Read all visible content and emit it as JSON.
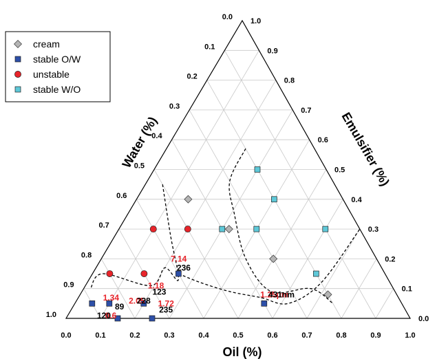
{
  "chart_data": {
    "type": "ternary-scatter",
    "axes": {
      "oil": {
        "title": "Oil (%)",
        "ticks": [
          "0.0",
          "0.1",
          "0.2",
          "0.3",
          "0.4",
          "0.5",
          "0.6",
          "0.7",
          "0.8",
          "0.9",
          "1.0"
        ]
      },
      "water": {
        "title": "Water (%)",
        "ticks": [
          "0.0",
          "0.1",
          "0.2",
          "0.3",
          "0.4",
          "0.5",
          "0.6",
          "0.7",
          "0.8",
          "0.9",
          "1.0"
        ]
      },
      "emulsifier": {
        "title": "Emulsifier (%)",
        "ticks": [
          "0.0",
          "0.1",
          "0.2",
          "0.3",
          "0.4",
          "0.5",
          "0.6",
          "0.7",
          "0.8",
          "0.9",
          "1.0"
        ]
      }
    },
    "grid": true,
    "legend_position": "top-left",
    "legend": [
      {
        "key": "cream",
        "label": "cream",
        "marker": "diamond",
        "color": "#b4b4b4"
      },
      {
        "key": "stable_ow",
        "label": "stable O/W",
        "marker": "square",
        "color": "#2d4fa8"
      },
      {
        "key": "unstable",
        "label": "unstable",
        "marker": "circle",
        "color": "#e8242a"
      },
      {
        "key": "stable_wo",
        "label": "stable W/O",
        "marker": "square",
        "color": "#5ec8d8"
      }
    ],
    "series": [
      {
        "key": "cream",
        "points": [
          {
            "oil": 0.15,
            "water": 0.45,
            "emulsifier": 0.4
          },
          {
            "oil": 0.32,
            "water": 0.38,
            "emulsifier": 0.3
          },
          {
            "oil": 0.5,
            "water": 0.3,
            "emulsifier": 0.2
          },
          {
            "oil": 0.72,
            "water": 0.2,
            "emulsifier": 0.08
          }
        ]
      },
      {
        "key": "stable_ow",
        "points": [
          {
            "oil": 0.05,
            "water": 0.9,
            "emulsifier": 0.05
          },
          {
            "oil": 0.1,
            "water": 0.85,
            "emulsifier": 0.05
          },
          {
            "oil": 0.15,
            "water": 0.85,
            "emulsifier": 0.0
          },
          {
            "oil": 0.2,
            "water": 0.75,
            "emulsifier": 0.05
          },
          {
            "oil": 0.25,
            "water": 0.75,
            "emulsifier": 0.0
          },
          {
            "oil": 0.25,
            "water": 0.6,
            "emulsifier": 0.15
          },
          {
            "oil": 0.55,
            "water": 0.4,
            "emulsifier": 0.05
          }
        ]
      },
      {
        "key": "unstable",
        "points": [
          {
            "oil": 0.05,
            "water": 0.8,
            "emulsifier": 0.15
          },
          {
            "oil": 0.15,
            "water": 0.7,
            "emulsifier": 0.15
          },
          {
            "oil": 0.1,
            "water": 0.6,
            "emulsifier": 0.3
          },
          {
            "oil": 0.2,
            "water": 0.5,
            "emulsifier": 0.3
          }
        ]
      },
      {
        "key": "stable_wo",
        "points": [
          {
            "oil": 0.3,
            "water": 0.4,
            "emulsifier": 0.3
          },
          {
            "oil": 0.3,
            "water": 0.2,
            "emulsifier": 0.5
          },
          {
            "oil": 0.4,
            "water": 0.2,
            "emulsifier": 0.4
          },
          {
            "oil": 0.6,
            "water": 0.1,
            "emulsifier": 0.3
          },
          {
            "oil": 0.4,
            "water": 0.3,
            "emulsifier": 0.3
          },
          {
            "oil": 0.65,
            "water": 0.2,
            "emulsifier": 0.15
          }
        ]
      }
    ],
    "annotations": [
      {
        "text": "0.6",
        "color": "#e8242a",
        "oil": 0.13,
        "water": 0.87
      },
      {
        "text": "89",
        "color": "#000000",
        "oil": 0.14,
        "water": 0.83
      },
      {
        "text": "1.34",
        "color": "#e8242a",
        "oil": 0.1,
        "water": 0.84
      },
      {
        "text": "120",
        "color": "#000000",
        "oil": 0.11,
        "water": 0.89
      },
      {
        "text": "2.05",
        "color": "#e8242a",
        "oil": 0.18,
        "water": 0.77
      },
      {
        "text": "228",
        "color": "#000000",
        "oil": 0.2,
        "water": 0.75
      },
      {
        "text": "1.72",
        "color": "#e8242a",
        "oil": 0.27,
        "water": 0.69
      },
      {
        "text": "235",
        "color": "#000000",
        "oil": 0.28,
        "water": 0.7
      },
      {
        "text": "1.18",
        "color": "#e8242a",
        "oil": 0.21,
        "water": 0.69
      },
      {
        "text": "123",
        "color": "#000000",
        "oil": 0.23,
        "water": 0.69
      },
      {
        "text": "7.14",
        "color": "#e8242a",
        "oil": 0.23,
        "water": 0.58
      },
      {
        "text": "236",
        "color": "#000000",
        "oil": 0.26,
        "water": 0.58
      },
      {
        "text": "1.25μm",
        "color": "#e8242a",
        "oil": 0.57,
        "water": 0.36
      },
      {
        "text": "431nm",
        "color": "#000000",
        "oil": 0.59,
        "water": 0.34
      }
    ],
    "boundaries": [
      {
        "name": "W/O boundary",
        "points": [
          {
            "oil": 0.23,
            "water": 0.2
          },
          {
            "oil": 0.24,
            "water": 0.3
          },
          {
            "oil": 0.31,
            "water": 0.34
          },
          {
            "oil": 0.42,
            "water": 0.38
          },
          {
            "oil": 0.55,
            "water": 0.36
          },
          {
            "oil": 0.66,
            "water": 0.24
          },
          {
            "oil": 0.75,
            "water": 0.2
          }
        ]
      },
      {
        "name": "O/W boundary",
        "points": [
          {
            "oil": 0.05,
            "water": 0.5
          },
          {
            "oil": 0.16,
            "water": 0.56
          },
          {
            "oil": 0.26,
            "water": 0.61
          },
          {
            "oil": 0.2,
            "water": 0.63
          },
          {
            "oil": 0.19,
            "water": 0.7
          },
          {
            "oil": 0.03,
            "water": 0.82
          },
          {
            "oil": 0.02,
            "water": 0.88
          }
        ]
      },
      {
        "name": "cream boundary",
        "points": [
          {
            "oil": 0.25,
            "water": 0.6
          },
          {
            "oil": 0.33,
            "water": 0.55
          },
          {
            "oil": 0.43,
            "water": 0.48
          },
          {
            "oil": 0.53,
            "water": 0.4
          },
          {
            "oil": 0.62,
            "water": 0.33
          },
          {
            "oil": 0.68,
            "water": 0.2
          },
          {
            "oil": 0.7,
            "water": 0.0
          }
        ]
      }
    ]
  }
}
